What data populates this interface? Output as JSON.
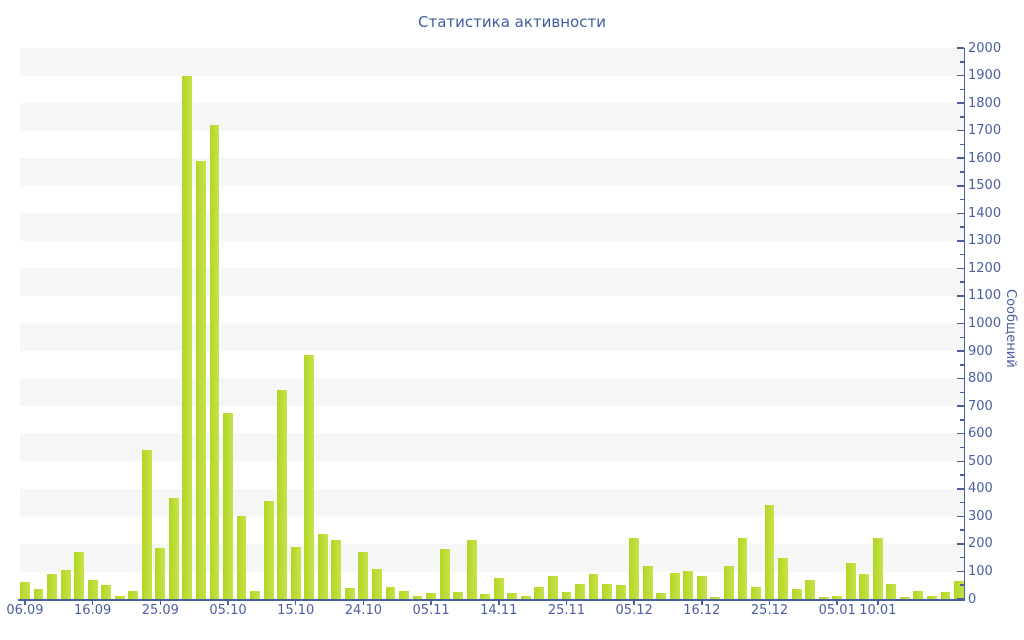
{
  "chart_data": {
    "type": "bar",
    "title": "Статистика активности",
    "ylabel": "Сообщений",
    "xlabel": "",
    "ylim": [
      0,
      2000
    ],
    "y_major_tick_step": 100,
    "y_minor_tick_step": 50,
    "legend": "none",
    "grid": "horizontal alternating bands, 100 units per band, topmost band shaded",
    "values": [
      60,
      35,
      90,
      105,
      170,
      70,
      52,
      12,
      30,
      540,
      185,
      365,
      1900,
      1590,
      1720,
      675,
      300,
      28,
      355,
      760,
      190,
      885,
      235,
      215,
      40,
      170,
      110,
      42,
      30,
      10,
      22,
      180,
      24,
      215,
      18,
      76,
      22,
      12,
      45,
      85,
      24,
      55,
      90,
      55,
      50,
      220,
      120,
      22,
      95,
      100,
      85,
      8,
      120,
      220,
      45,
      340,
      150,
      35,
      70,
      6,
      12,
      130,
      90,
      220,
      55,
      6,
      30,
      12,
      25,
      65
    ],
    "x_tick_labels": [
      {
        "bar_index": 0,
        "label": "06.09"
      },
      {
        "bar_index": 5,
        "label": "16.09"
      },
      {
        "bar_index": 10,
        "label": "25.09"
      },
      {
        "bar_index": 15,
        "label": "05.10"
      },
      {
        "bar_index": 20,
        "label": "15.10"
      },
      {
        "bar_index": 25,
        "label": "24.10"
      },
      {
        "bar_index": 30,
        "label": "05.11"
      },
      {
        "bar_index": 35,
        "label": "14.11"
      },
      {
        "bar_index": 40,
        "label": "25.11"
      },
      {
        "bar_index": 45,
        "label": "05.12"
      },
      {
        "bar_index": 50,
        "label": "16.12"
      },
      {
        "bar_index": 55,
        "label": "25.12"
      },
      {
        "bar_index": 60,
        "label": "05.01"
      },
      {
        "bar_index": 63,
        "label": "10.01"
      }
    ],
    "colors": {
      "bar": "#b9dc32",
      "axis": "#4a5f9e",
      "tick_text": "#4a5f9e",
      "title_text": "#3f5d9c",
      "band_shaded": "#f6f6f7",
      "background": "#ffffff"
    }
  }
}
